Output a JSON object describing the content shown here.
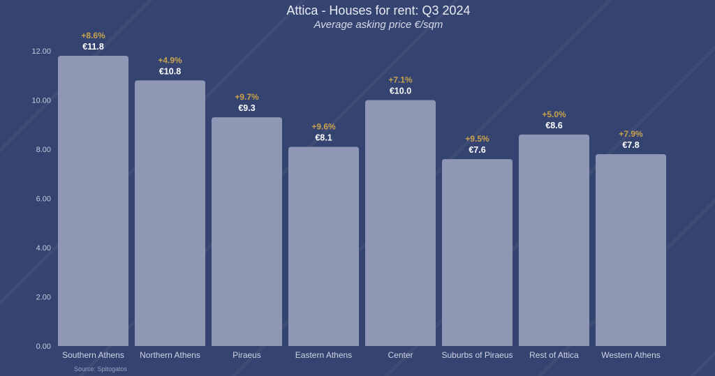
{
  "colors": {
    "background": "#34436f",
    "bar": "#8e97b3",
    "value_label": "#ffffff",
    "change_label": "#c9a24e"
  },
  "source": "Source: Spitogatos",
  "chart_data": {
    "type": "bar",
    "title": "Attica - Houses for rent: Q3 2024",
    "subtitle": "Average asking price €/sqm",
    "xlabel": "",
    "ylabel": "",
    "ylim": [
      0,
      12
    ],
    "yticks": [
      "0.00",
      "2.00",
      "4.00",
      "6.00",
      "8.00",
      "10.00",
      "12.00"
    ],
    "grid": false,
    "categories": [
      "Southern Athens",
      "Northern Athens",
      "Piraeus",
      "Eastern Athens",
      "Center",
      "Suburbs of Piraeus",
      "Rest of Attica",
      "Western Athens"
    ],
    "values": [
      11.8,
      10.8,
      9.3,
      8.1,
      10.0,
      7.6,
      8.6,
      7.8
    ],
    "value_labels": [
      "€11.8",
      "€10.8",
      "€9.3",
      "€8.1",
      "€10.0",
      "€7.6",
      "€8.6",
      "€7.8"
    ],
    "change_labels": [
      "+8.6%",
      "+4.9%",
      "+9.7%",
      "+9.6%",
      "+7.1%",
      "+9.5%",
      "+5.0%",
      "+7.9%"
    ]
  }
}
